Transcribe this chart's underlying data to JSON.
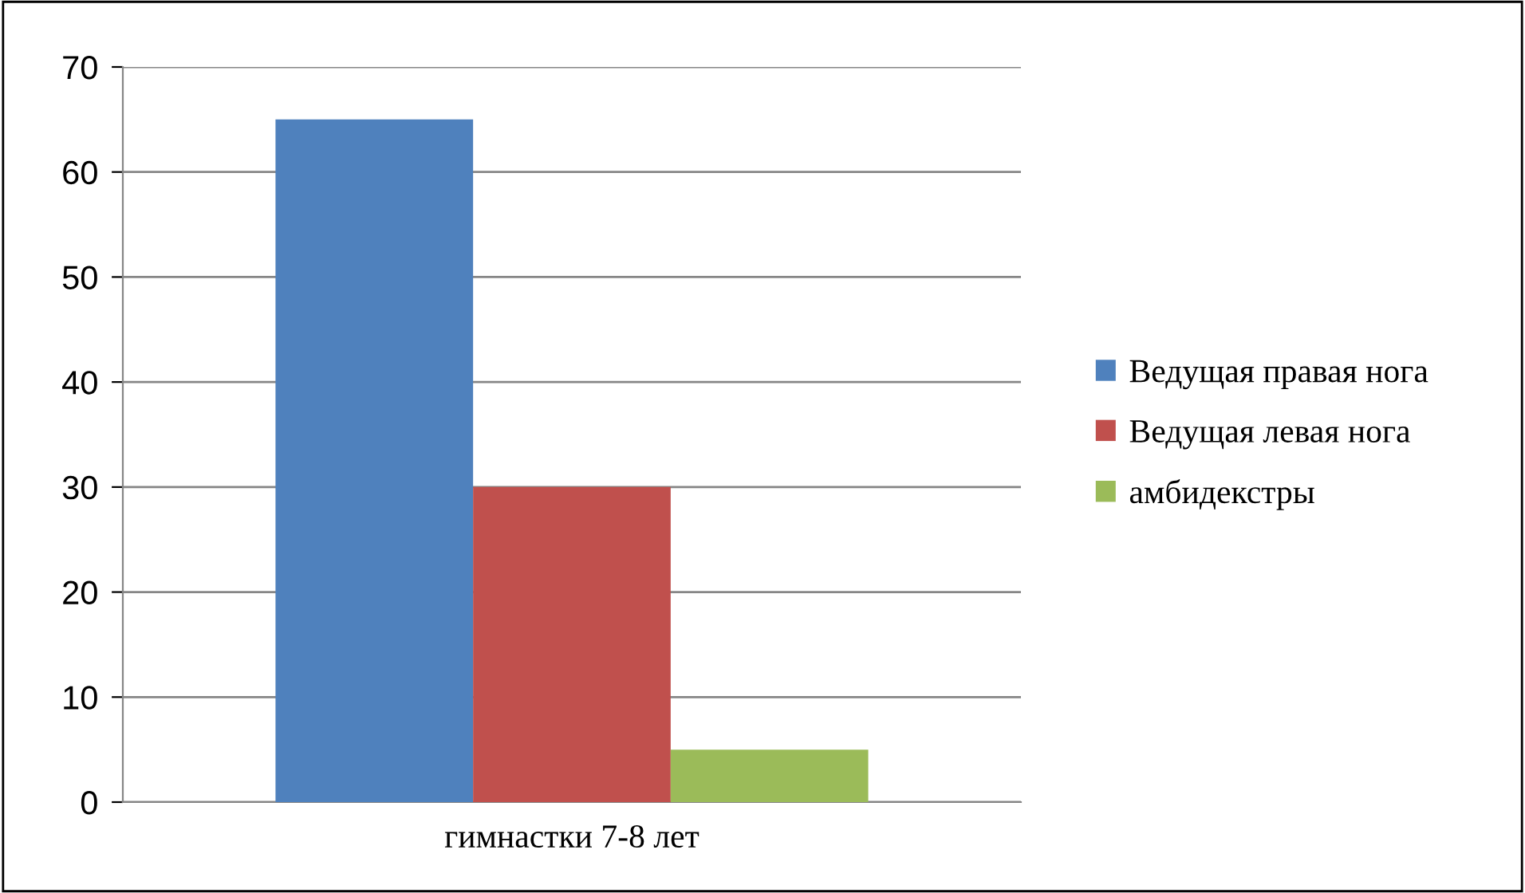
{
  "chart_data": {
    "type": "bar",
    "categories": [
      "гимнастки 7-8 лет"
    ],
    "series": [
      {
        "name": "Ведущая правая нога",
        "color": "#4f81bd",
        "values": [
          65
        ]
      },
      {
        "name": "Ведущая левая нога",
        "color": "#c0504d",
        "values": [
          30
        ]
      },
      {
        "name": "амбидекстры",
        "color": "#9bbb59",
        "values": [
          5
        ]
      }
    ],
    "ylim": [
      0,
      70
    ],
    "yticks": [
      0,
      10,
      20,
      30,
      40,
      50,
      60,
      70
    ],
    "grid": "y",
    "legend": "right"
  }
}
